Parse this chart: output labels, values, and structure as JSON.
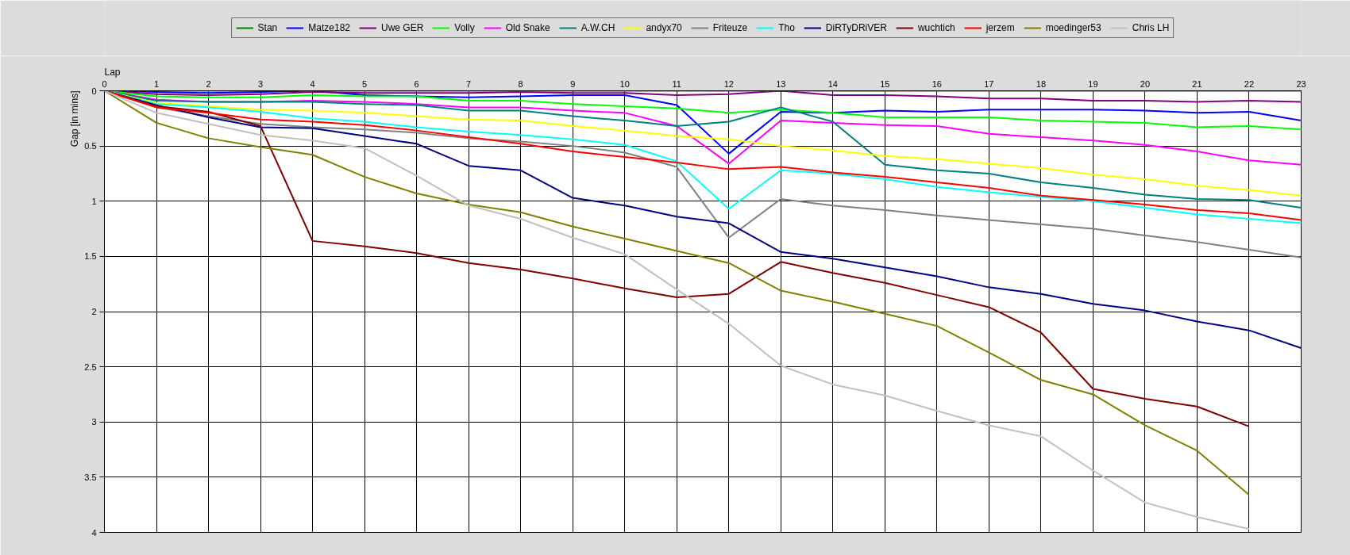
{
  "chart_data": {
    "type": "line",
    "xlabel": "Lap",
    "ylabel": "Gap [in mins]",
    "x": [
      0,
      1,
      2,
      3,
      4,
      5,
      6,
      7,
      8,
      9,
      10,
      11,
      12,
      13,
      14,
      15,
      16,
      17,
      18,
      19,
      20,
      21,
      22,
      23
    ],
    "xlim": [
      0,
      23
    ],
    "xticks": [
      0,
      1,
      2,
      3,
      4,
      5,
      6,
      7,
      8,
      9,
      10,
      11,
      12,
      13,
      14,
      15,
      16,
      17,
      18,
      19,
      20,
      21,
      22,
      23
    ],
    "ylim": [
      4,
      0
    ],
    "yticks": [
      0,
      0.5,
      1,
      1.5,
      2,
      2.5,
      3,
      3.5,
      4
    ],
    "grid": true,
    "legend": "top",
    "line_style": "solid",
    "series": [
      {
        "name": "Stan",
        "color": "#008000",
        "values": [
          0,
          0,
          0,
          0,
          0,
          0,
          0,
          0,
          0,
          0,
          0,
          0,
          0,
          0,
          0,
          0,
          0,
          0,
          0,
          0,
          0,
          0,
          0,
          0
        ]
      },
      {
        "name": "Matze182",
        "color": "#0000ff",
        "values": [
          0,
          0.01,
          0.02,
          0.01,
          0,
          0.04,
          0.05,
          0.06,
          0.05,
          0.04,
          0.04,
          0.13,
          0.57,
          0.19,
          0.2,
          0.18,
          0.19,
          0.17,
          0.17,
          0.17,
          0.18,
          0.2,
          0.19,
          0.27
        ]
      },
      {
        "name": "Uwe GER",
        "color": "#800080",
        "values": [
          0,
          0.03,
          0.04,
          0.03,
          0.01,
          0.02,
          0.02,
          0.02,
          0.01,
          0.02,
          0.02,
          0.04,
          0.03,
          0,
          0.04,
          0.04,
          0.05,
          0.07,
          0.07,
          0.09,
          0.09,
          0.1,
          0.09,
          0.1
        ]
      },
      {
        "name": "Volly",
        "color": "#00ff00",
        "values": [
          0,
          0.05,
          0.06,
          0.06,
          0.04,
          0.05,
          0.05,
          0.09,
          0.09,
          0.12,
          0.14,
          0.16,
          0.2,
          0.17,
          0.2,
          0.24,
          0.24,
          0.24,
          0.27,
          0.28,
          0.29,
          0.33,
          0.32,
          0.35
        ]
      },
      {
        "name": "Old Snake",
        "color": "#ff00ff",
        "values": [
          0,
          0.08,
          0.1,
          0.1,
          0.09,
          0.1,
          0.12,
          0.15,
          0.15,
          0.18,
          0.2,
          0.32,
          0.66,
          0.27,
          0.29,
          0.31,
          0.32,
          0.39,
          0.42,
          0.45,
          0.49,
          0.55,
          0.63,
          0.67
        ]
      },
      {
        "name": "A.W.CH",
        "color": "#008080",
        "values": [
          0,
          0.09,
          0.1,
          0.1,
          0.1,
          0.12,
          0.13,
          0.18,
          0.18,
          0.23,
          0.27,
          0.32,
          0.28,
          0.15,
          0.28,
          0.67,
          0.72,
          0.75,
          0.83,
          0.88,
          0.94,
          0.98,
          0.99,
          1.06
        ]
      },
      {
        "name": "andyx70",
        "color": "#ffff00",
        "values": [
          0,
          0.11,
          0.14,
          0.17,
          0.18,
          0.2,
          0.23,
          0.26,
          0.27,
          0.32,
          0.36,
          0.41,
          0.44,
          0.5,
          0.54,
          0.59,
          0.62,
          0.66,
          0.7,
          0.76,
          0.8,
          0.86,
          0.9,
          0.95
        ]
      },
      {
        "name": "Friteuze",
        "color": "#808080",
        "values": [
          0,
          0.15,
          0.23,
          0.3,
          0.33,
          0.35,
          0.38,
          0.43,
          0.46,
          0.5,
          0.56,
          0.69,
          1.33,
          0.98,
          1.04,
          1.08,
          1.13,
          1.17,
          1.21,
          1.25,
          1.31,
          1.37,
          1.44,
          1.51
        ]
      },
      {
        "name": "Tho",
        "color": "#00ffff",
        "values": [
          0,
          0.12,
          0.15,
          0.19,
          0.25,
          0.28,
          0.33,
          0.37,
          0.4,
          0.44,
          0.49,
          0.64,
          1.07,
          0.72,
          0.75,
          0.8,
          0.87,
          0.92,
          0.96,
          1.0,
          1.06,
          1.12,
          1.16,
          1.2
        ]
      },
      {
        "name": "DiRTyDRiVER",
        "color": "#000080",
        "values": [
          0,
          0.13,
          0.24,
          0.33,
          0.34,
          0.41,
          0.48,
          0.68,
          0.72,
          0.97,
          1.04,
          1.14,
          1.2,
          1.46,
          1.52,
          1.6,
          1.68,
          1.78,
          1.84,
          1.93,
          1.99,
          2.09,
          2.17,
          2.33
        ]
      },
      {
        "name": "wuchtich",
        "color": "#800000",
        "values": [
          0,
          0.14,
          0.19,
          0.32,
          1.36,
          1.41,
          1.47,
          1.56,
          1.62,
          1.7,
          1.79,
          1.87,
          1.84,
          1.55,
          1.65,
          1.74,
          1.85,
          1.96,
          2.19,
          2.7,
          2.79,
          2.86,
          3.04,
          null
        ]
      },
      {
        "name": "jerzem",
        "color": "#ff0000",
        "values": [
          0,
          0.15,
          0.2,
          0.26,
          0.28,
          0.31,
          0.36,
          0.42,
          0.48,
          0.55,
          0.6,
          0.65,
          0.71,
          0.69,
          0.74,
          0.78,
          0.83,
          0.88,
          0.95,
          0.99,
          1.03,
          1.08,
          1.11,
          1.17
        ]
      },
      {
        "name": "moedinger53",
        "color": "#808000",
        "values": [
          0,
          0.29,
          0.43,
          0.51,
          0.58,
          0.78,
          0.93,
          1.03,
          1.1,
          1.23,
          1.34,
          1.45,
          1.56,
          1.81,
          1.91,
          2.02,
          2.13,
          2.37,
          2.62,
          2.75,
          3.03,
          3.26,
          3.66,
          null
        ]
      },
      {
        "name": "Chris LH",
        "color": "#c0c0c0",
        "values": [
          0,
          0.2,
          0.3,
          0.4,
          0.45,
          0.52,
          0.77,
          1.04,
          1.16,
          1.33,
          1.48,
          1.8,
          2.11,
          2.49,
          2.66,
          2.76,
          2.9,
          3.03,
          3.13,
          3.44,
          3.73,
          3.86,
          3.97,
          null
        ]
      }
    ]
  }
}
